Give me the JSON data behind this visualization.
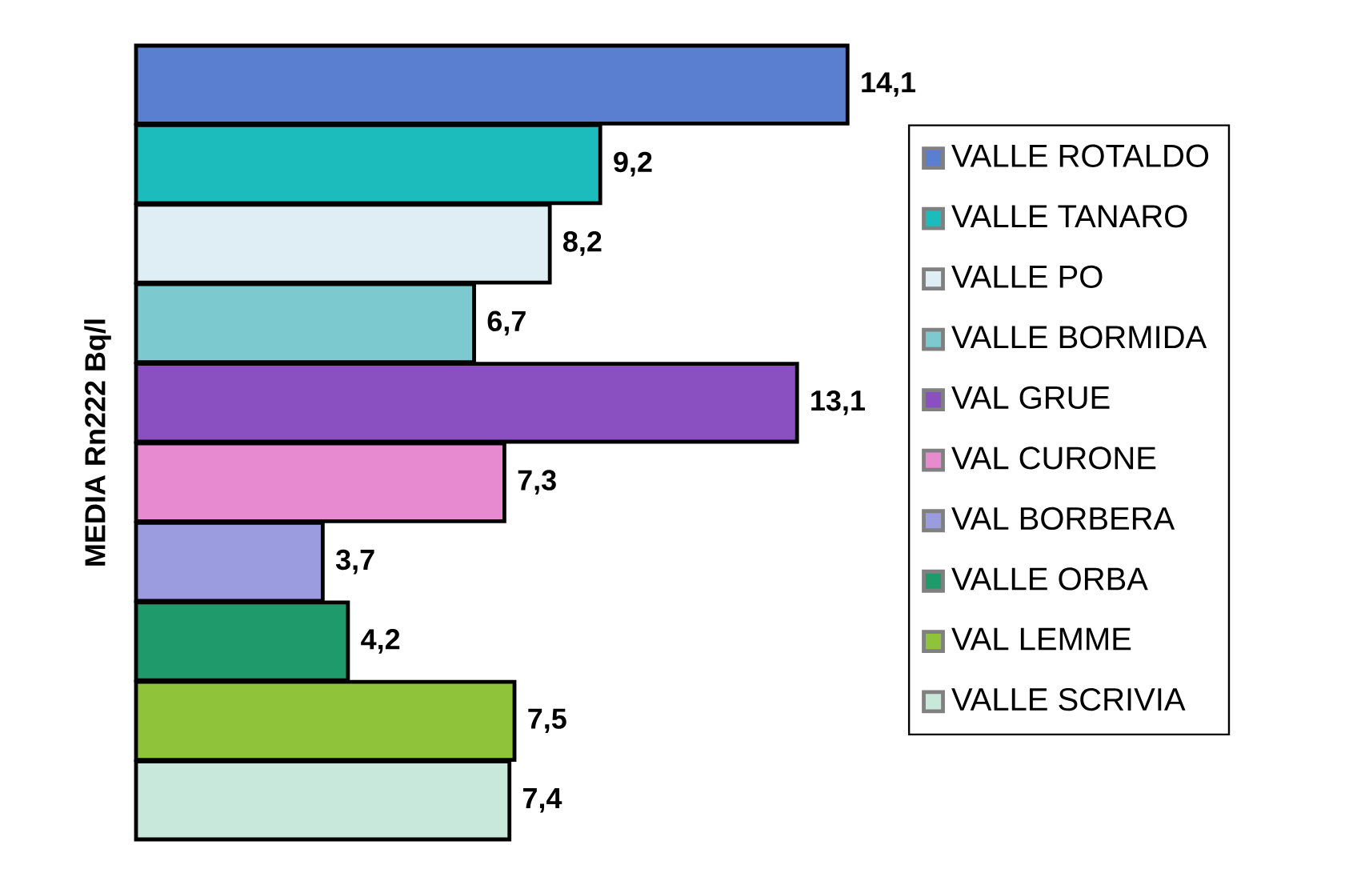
{
  "chart_data": {
    "type": "bar",
    "orientation": "horizontal",
    "ylabel": "MEDIA Rn222 Bq/l",
    "categories": [
      null
    ],
    "legend": "right",
    "series": [
      {
        "name": "VALLE ROTALDO",
        "color": "#5b7fd0",
        "values": [
          14.1
        ],
        "value_labels": [
          "14,1"
        ]
      },
      {
        "name": "VALLE TANARO",
        "color": "#1cbcbc",
        "values": [
          9.2
        ],
        "value_labels": [
          "9,2"
        ]
      },
      {
        "name": "VALLE PO",
        "color": "#dfeef5",
        "values": [
          8.2
        ],
        "value_labels": [
          "8,2"
        ]
      },
      {
        "name": "VALLE BORMIDA",
        "color": "#7cc9d0",
        "values": [
          6.7
        ],
        "value_labels": [
          "6,7"
        ]
      },
      {
        "name": "VAL GRUE",
        "color": "#8a4fc0",
        "values": [
          13.1
        ],
        "value_labels": [
          "13,1"
        ]
      },
      {
        "name": "VAL CURONE",
        "color": "#e88ad0",
        "values": [
          7.3
        ],
        "value_labels": [
          "7,3"
        ]
      },
      {
        "name": "VAL BORBERA",
        "color": "#9b9be0",
        "values": [
          3.7
        ],
        "value_labels": [
          "3,7"
        ]
      },
      {
        "name": "VALLE ORBA",
        "color": "#1f9a6a",
        "values": [
          4.2
        ],
        "value_labels": [
          "4,2"
        ]
      },
      {
        "name": "VAL LEMME",
        "color": "#8fc43a",
        "values": [
          7.5
        ],
        "value_labels": [
          "7,5"
        ]
      },
      {
        "name": "VALLE SCRIVIA",
        "color": "#c9e8dc",
        "values": [
          7.4
        ],
        "value_labels": [
          "7,4"
        ]
      }
    ]
  }
}
